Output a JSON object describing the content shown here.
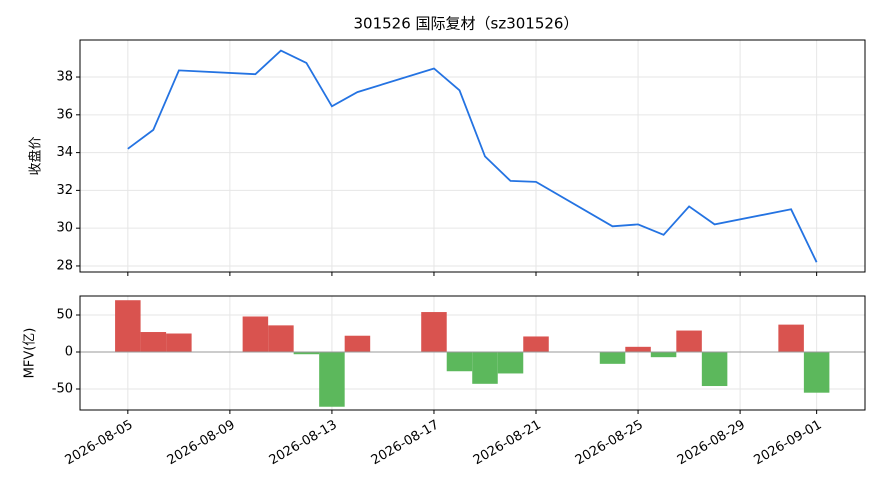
{
  "chart_data": [
    {
      "type": "line",
      "title": "301526 国际复材（sz301526）",
      "y_label": "收盘价",
      "x": [
        "2026-08-05",
        "2026-08-06",
        "2026-08-07",
        "2026-08-10",
        "2026-08-11",
        "2026-08-12",
        "2026-08-13",
        "2026-08-14",
        "2026-08-17",
        "2026-08-18",
        "2026-08-19",
        "2026-08-20",
        "2026-08-21",
        "2026-08-24",
        "2026-08-25",
        "2026-08-26",
        "2026-08-27",
        "2026-08-28",
        "2026-08-31",
        "2026-09-01"
      ],
      "values": [
        34.2,
        35.2,
        38.35,
        38.15,
        39.4,
        38.75,
        36.45,
        37.2,
        38.45,
        37.3,
        33.8,
        32.5,
        32.45,
        30.1,
        30.2,
        29.65,
        31.15,
        30.2,
        31.0,
        28.2
      ],
      "color": "#2473e2",
      "xlim": [
        "2026-08-03T03:00:00Z",
        "2026-09-02T21:30:00Z"
      ],
      "ylim": [
        27.68,
        39.96
      ],
      "yticks": [
        28,
        30,
        32,
        34,
        36,
        38
      ],
      "grid": true
    },
    {
      "type": "bar",
      "y_label": "MFV(亿)",
      "x": [
        "2026-08-05",
        "2026-08-06",
        "2026-08-07",
        "2026-08-10",
        "2026-08-11",
        "2026-08-12",
        "2026-08-13",
        "2026-08-14",
        "2026-08-17",
        "2026-08-18",
        "2026-08-19",
        "2026-08-20",
        "2026-08-21",
        "2026-08-24",
        "2026-08-25",
        "2026-08-26",
        "2026-08-27",
        "2026-08-28",
        "2026-08-31",
        "2026-09-01"
      ],
      "values": [
        70,
        27,
        25,
        48,
        36,
        -3,
        -74,
        22,
        54,
        -26,
        -43,
        -29,
        21,
        -16,
        7,
        -7,
        29,
        -46,
        37,
        -55
      ],
      "positive_color": "#d9534f",
      "negative_color": "#5cb85c",
      "xlim": [
        "2026-08-03T03:00:00Z",
        "2026-09-02T21:30:00Z"
      ],
      "xticks": [
        "2026-08-05",
        "2026-08-09",
        "2026-08-13",
        "2026-08-17",
        "2026-08-21",
        "2026-08-25",
        "2026-08-29",
        "2026-09-01"
      ],
      "ylim": [
        -78.4,
        75.7
      ],
      "yticks": [
        -50,
        0,
        50
      ],
      "grid": true
    }
  ]
}
